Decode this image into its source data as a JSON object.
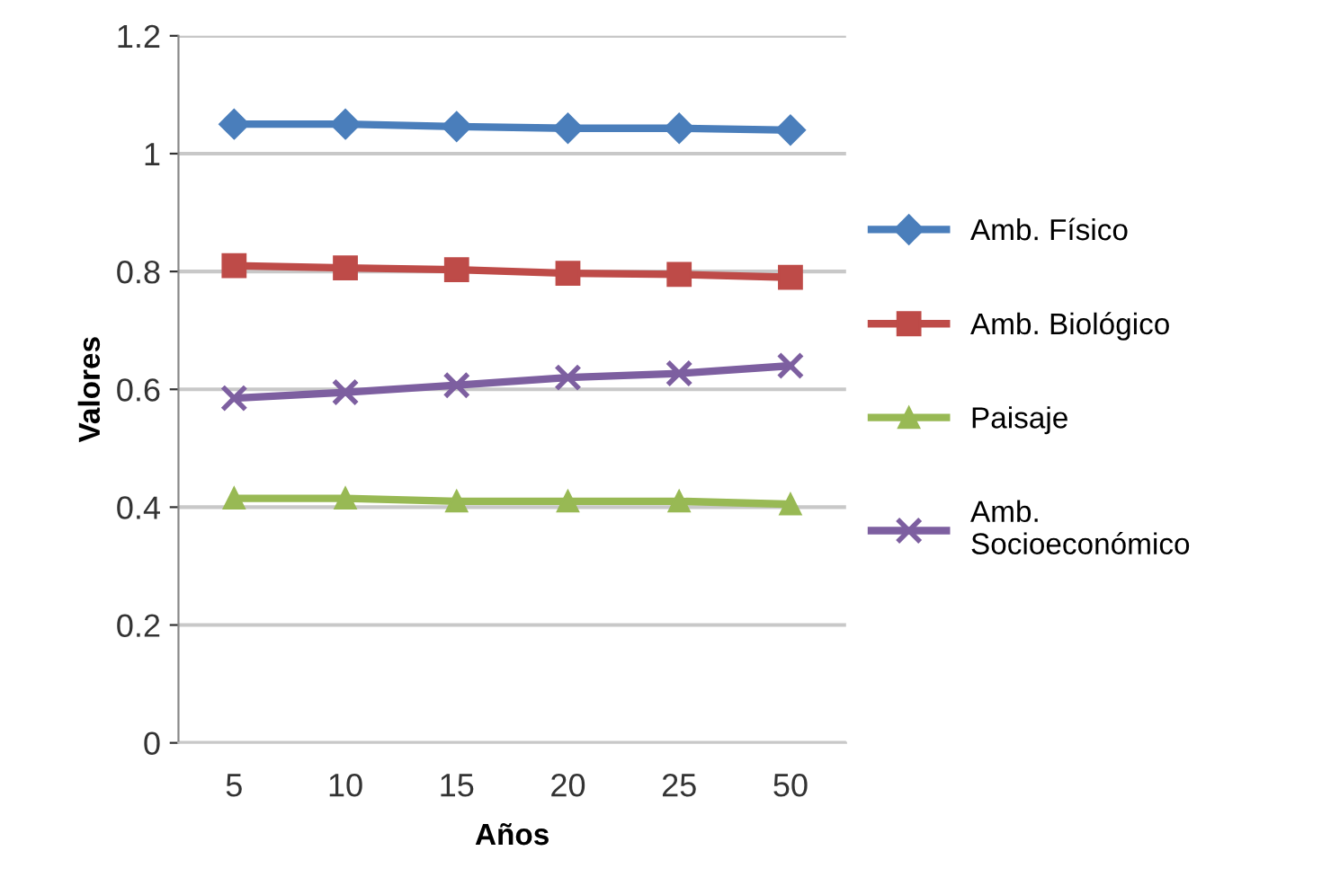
{
  "chart_data": {
    "type": "line",
    "xlabel": "Años",
    "ylabel": "Valores",
    "categories": [
      "5",
      "10",
      "15",
      "20",
      "25",
      "50"
    ],
    "series": [
      {
        "name": "Amb. Físico",
        "color": "#4a7ebb",
        "marker": "diamond",
        "values": [
          1.05,
          1.05,
          1.046,
          1.043,
          1.043,
          1.04
        ]
      },
      {
        "name": "Amb. Biológico",
        "color": "#be4b48",
        "marker": "square",
        "values": [
          0.81,
          0.806,
          0.803,
          0.797,
          0.795,
          0.79
        ]
      },
      {
        "name": "Paisaje",
        "color": "#98b954",
        "marker": "triangle",
        "values": [
          0.415,
          0.415,
          0.41,
          0.41,
          0.41,
          0.405
        ]
      },
      {
        "name": "Amb.\nSocioeconómico",
        "color": "#7d5fa0",
        "marker": "cross",
        "values": [
          0.585,
          0.595,
          0.607,
          0.62,
          0.627,
          0.64
        ]
      }
    ],
    "ylim": [
      0,
      1.2
    ],
    "yticks": [
      0,
      0.2,
      0.4,
      0.6,
      0.8,
      1,
      1.2
    ],
    "grid": "y",
    "legend": "right",
    "line_style": "solid"
  }
}
